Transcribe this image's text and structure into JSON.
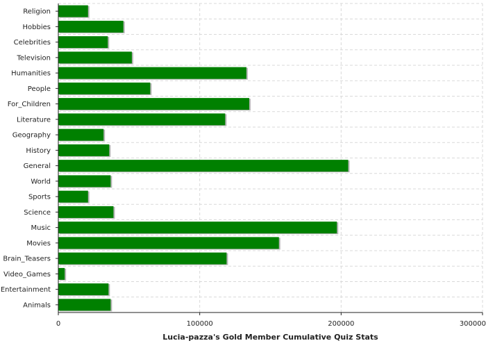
{
  "chart_data": {
    "type": "bar",
    "orientation": "horizontal",
    "categories": [
      "Religion",
      "Hobbies",
      "Celebrities",
      "Television",
      "Humanities",
      "People",
      "For_Children",
      "Literature",
      "Geography",
      "History",
      "General",
      "World",
      "Sports",
      "Science",
      "Music",
      "Movies",
      "Brain_Teasers",
      "Video_Games",
      "Entertainment",
      "Animals"
    ],
    "values": [
      21000,
      46000,
      35000,
      52000,
      133000,
      65000,
      135000,
      118000,
      32000,
      36000,
      205000,
      37000,
      21000,
      39000,
      197000,
      156000,
      119000,
      4500,
      35500,
      37000
    ],
    "title": "",
    "xlabel": "Lucia-pazza's Gold Member Cumulative Quiz Stats",
    "ylabel": "",
    "xlim": [
      0,
      300000
    ],
    "x_ticks": [
      0,
      100000,
      200000,
      300000
    ],
    "x_tick_labels": [
      "0",
      "100000",
      "200000",
      "300000"
    ],
    "grid": true,
    "legend": "none",
    "bar_color": "#008000",
    "bar_shadow_color": "#b5b5b5",
    "grid_color": "#d9d9d9",
    "axis_color": "#222222"
  }
}
